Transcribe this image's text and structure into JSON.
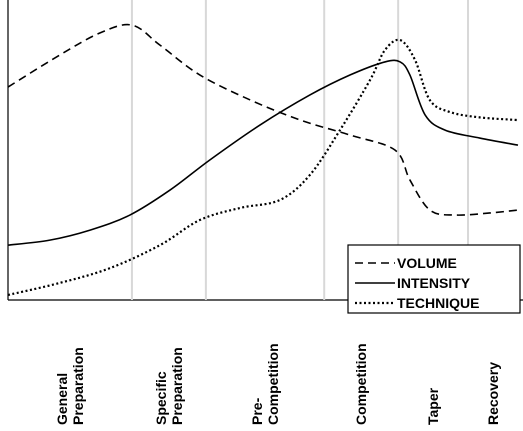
{
  "chart_data": {
    "type": "line",
    "categories": [
      "General Preparation",
      "Specific Preparation",
      "Pre-Competition",
      "Competition",
      "Taper",
      "Recovery"
    ],
    "phase_boundaries": [
      24.3,
      38.8,
      62,
      76.5,
      90.2
    ],
    "xlim": [
      0,
      100
    ],
    "ylim": [
      0,
      100
    ],
    "legend": "lower right",
    "series": [
      {
        "name": "VOLUME",
        "color": "#000000",
        "linestyle": "dashed",
        "x": [
          0,
          10.2,
          18,
          24.3,
          29.8,
          37.6,
          47.5,
          57.3,
          67.1,
          75.9,
          78.8,
          82.7,
          87.6,
          94.5,
          100
        ],
        "values": [
          72.2,
          83.1,
          90.5,
          93.2,
          86.4,
          76.3,
          67.8,
          61,
          55.9,
          50.8,
          40.7,
          30.5,
          28.8,
          29.5,
          30.5
        ]
      },
      {
        "name": "INTENSITY",
        "color": "#000000",
        "linestyle": "solid",
        "x": [
          0,
          8.2,
          16.1,
          23.9,
          31.8,
          39.6,
          49.4,
          59.2,
          67.1,
          73.9,
          76.9,
          78.8,
          81.8,
          85.7,
          92.5,
          100
        ],
        "values": [
          18.6,
          20.3,
          23.7,
          28.8,
          37.3,
          47.5,
          59.3,
          69.5,
          76.3,
          80.7,
          80.7,
          76.3,
          62.7,
          57.6,
          54.9,
          52.5
        ]
      },
      {
        "name": "TECHNIQUE",
        "color": "#000000",
        "linestyle": "dotted",
        "x": [
          0,
          10.2,
          20,
          29.8,
          37.6,
          45.5,
          53.3,
          59.2,
          65.1,
          71,
          73.9,
          76.9,
          79.8,
          82.7,
          86.7,
          92.5,
          100
        ],
        "values": [
          1.7,
          5.8,
          10.8,
          18.6,
          27.1,
          31.2,
          33.9,
          42.4,
          57.6,
          74.6,
          84.7,
          88.1,
          81.4,
          67.8,
          63.7,
          61.9,
          61
        ]
      }
    ]
  }
}
